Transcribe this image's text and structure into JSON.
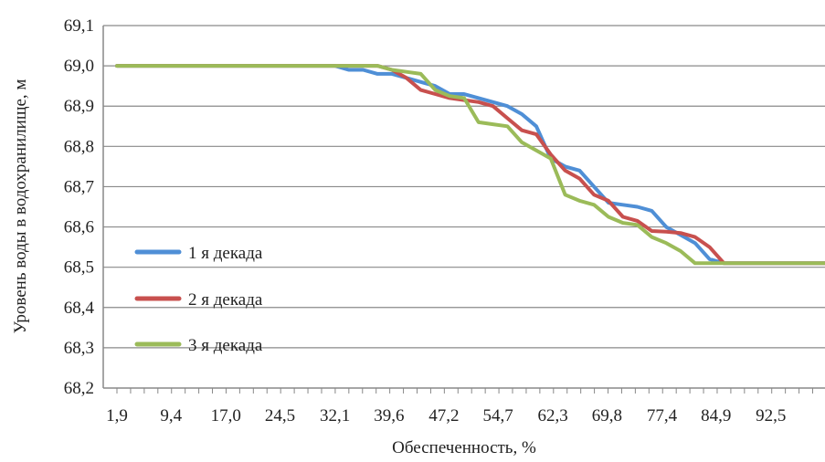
{
  "chart_data": {
    "type": "line",
    "xlabel": "Обеспеченность, %",
    "ylabel": "Уровень воды в водохранилище, м",
    "ylim": [
      68.2,
      69.1
    ],
    "yticks": [
      "68,2",
      "68,3",
      "68,4",
      "68,5",
      "68,6",
      "68,7",
      "68,8",
      "68,9",
      "69,0",
      "69,1"
    ],
    "xlim": [
      0,
      100
    ],
    "xtick_labels": [
      "1,9",
      "9,4",
      "17,0",
      "24,5",
      "32,1",
      "39,6",
      "47,2",
      "54,7",
      "62,3",
      "69,8",
      "77,4",
      "84,9",
      "92,5"
    ],
    "xtick_values": [
      1.9,
      9.4,
      17.0,
      24.5,
      32.1,
      39.6,
      47.2,
      54.7,
      62.3,
      69.8,
      77.4,
      84.9,
      92.5
    ],
    "grid": true,
    "legend_position": "left",
    "series": [
      {
        "name": "1 я декада",
        "color": "#4f8fd6",
        "x": [
          1.9,
          32.1,
          34,
          36,
          38,
          40,
          42,
          44,
          46,
          48,
          50,
          52,
          54,
          56,
          58,
          60,
          62,
          64,
          66,
          68,
          70,
          72,
          74,
          76,
          78,
          80,
          82,
          84,
          86,
          100
        ],
        "y": [
          69.0,
          69.0,
          68.99,
          68.99,
          68.98,
          68.98,
          68.97,
          68.96,
          68.95,
          68.93,
          68.93,
          68.92,
          68.91,
          68.9,
          68.88,
          68.85,
          68.77,
          68.75,
          68.74,
          68.7,
          68.66,
          68.655,
          68.65,
          68.64,
          68.6,
          68.58,
          68.56,
          68.52,
          68.51,
          68.51
        ]
      },
      {
        "name": "2 я декада",
        "color": "#c8504e",
        "x": [
          1.9,
          32.1,
          36,
          38,
          40,
          42,
          44,
          46,
          48,
          50,
          52,
          54,
          56,
          58,
          60,
          62,
          64,
          66,
          68,
          70,
          72,
          74,
          76,
          78,
          80,
          82,
          84,
          86,
          100
        ],
        "y": [
          69.0,
          69.0,
          69.0,
          69.0,
          68.99,
          68.97,
          68.94,
          68.93,
          68.92,
          68.915,
          68.91,
          68.9,
          68.87,
          68.84,
          68.83,
          68.78,
          68.74,
          68.72,
          68.68,
          68.665,
          68.625,
          68.615,
          68.59,
          68.588,
          68.585,
          68.575,
          68.55,
          68.51,
          68.51
        ]
      },
      {
        "name": "3 я декада",
        "color": "#9bbb59",
        "x": [
          1.9,
          32.1,
          38,
          40,
          42,
          44,
          46,
          48,
          50,
          52,
          54,
          56,
          58,
          60,
          62,
          64,
          66,
          68,
          70,
          72,
          74,
          76,
          78,
          80,
          82,
          84,
          86,
          100
        ],
        "y": [
          69.0,
          69.0,
          69.0,
          68.99,
          68.985,
          68.98,
          68.94,
          68.925,
          68.92,
          68.86,
          68.855,
          68.85,
          68.81,
          68.79,
          68.77,
          68.68,
          68.665,
          68.655,
          68.625,
          68.61,
          68.605,
          68.575,
          68.56,
          68.54,
          68.51,
          68.51,
          68.51,
          68.51
        ]
      }
    ]
  }
}
